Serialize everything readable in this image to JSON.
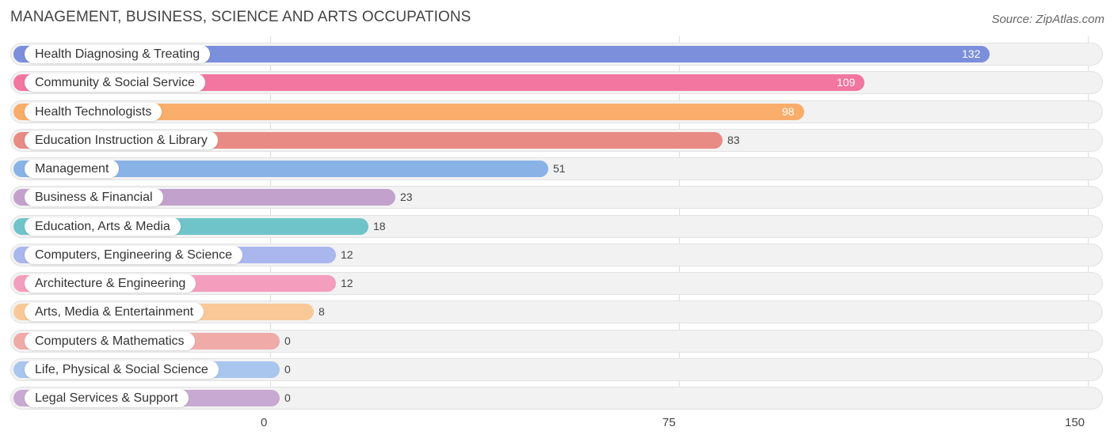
{
  "header": {
    "title": "MANAGEMENT, BUSINESS, SCIENCE AND ARTS OCCUPATIONS",
    "source": "Source: ZipAtlas.com"
  },
  "chart_data": {
    "type": "bar",
    "orientation": "horizontal",
    "categories": [
      "Health Diagnosing & Treating",
      "Community & Social Service",
      "Health Technologists",
      "Education Instruction & Library",
      "Management",
      "Business & Financial",
      "Education, Arts & Media",
      "Computers, Engineering & Science",
      "Architecture & Engineering",
      "Arts, Media & Entertainment",
      "Computers & Mathematics",
      "Life, Physical & Social Science",
      "Legal Services & Support"
    ],
    "values": [
      132,
      109,
      98,
      83,
      51,
      23,
      18,
      12,
      12,
      8,
      0,
      0,
      0
    ],
    "colors": [
      "#7b8fdc",
      "#f2769f",
      "#f8ad6a",
      "#e88b84",
      "#89b3e6",
      "#c2a2cc",
      "#6fc4c9",
      "#aab6ee",
      "#f59dbc",
      "#f9c897",
      "#f0aaa8",
      "#a8c6ee",
      "#c8a9d2"
    ],
    "xlim": [
      0,
      150
    ],
    "x_ticks": [
      0,
      75,
      150
    ],
    "grid": true,
    "title": "MANAGEMENT, BUSINESS, SCIENCE AND ARTS OCCUPATIONS",
    "xlabel": "",
    "ylabel": ""
  }
}
